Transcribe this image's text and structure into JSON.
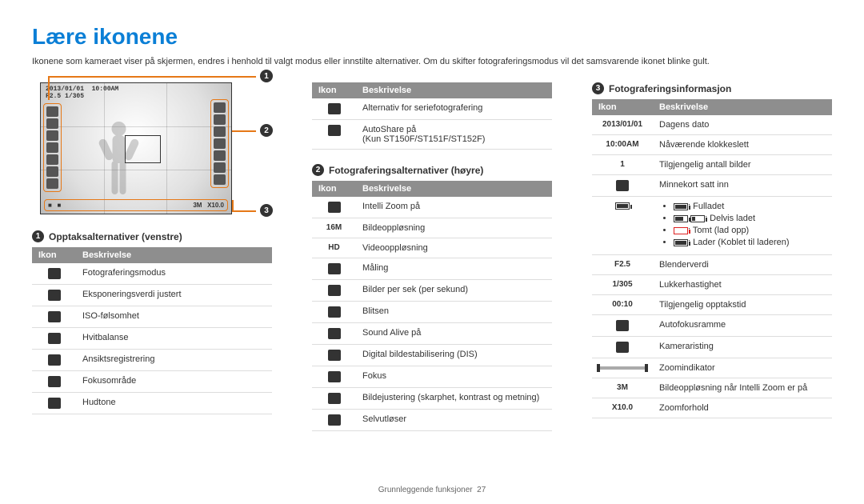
{
  "title": "Lære ikonene",
  "intro": "Ikonene som kameraet viser på skjermen, endres i henhold til valgt modus eller innstilte alternativer. Om du skifter fotograferingsmodus vil det samsvarende ikonet blinke gult.",
  "preview_date": "2013/01/01",
  "preview_time": "10:00AM",
  "preview_f": "F2.5",
  "preview_speed": "1/305",
  "tableHeaders": {
    "icon": "Ikon",
    "desc": "Beskrivelse"
  },
  "sections": {
    "s1": {
      "num": "1",
      "title": "Opptaksalternativer (venstre)",
      "rows": [
        {
          "desc": "Fotograferingsmodus"
        },
        {
          "desc": "Eksponeringsverdi justert"
        },
        {
          "desc": "ISO-følsomhet"
        },
        {
          "desc": "Hvitbalanse"
        },
        {
          "desc": "Ansiktsregistrering"
        },
        {
          "desc": "Fokusområde"
        },
        {
          "desc": "Hudtone"
        }
      ]
    },
    "s1b": {
      "rows": [
        {
          "desc": "Alternativ for seriefotografering"
        },
        {
          "desc": "AutoShare på\n(Kun ST150F/ST151F/ST152F)"
        }
      ]
    },
    "s2": {
      "num": "2",
      "title": "Fotograferingsalternativer (høyre)",
      "rows": [
        {
          "desc": "Intelli Zoom på"
        },
        {
          "icon": "16M",
          "desc": "Bildeoppløsning"
        },
        {
          "icon": "HD",
          "desc": "Videooppløsning"
        },
        {
          "desc": "Måling"
        },
        {
          "desc": "Bilder per sek (per sekund)"
        },
        {
          "desc": "Blitsen"
        },
        {
          "desc": "Sound Alive på"
        },
        {
          "desc": "Digital bildestabilisering (DIS)"
        },
        {
          "desc": "Fokus"
        },
        {
          "desc": "Bildejustering (skarphet, kontrast og metning)"
        },
        {
          "desc": "Selvutløser"
        }
      ]
    },
    "s3": {
      "num": "3",
      "title": "Fotograferingsinformasjon",
      "rows": [
        {
          "icon": "2013/01/01",
          "desc": "Dagens dato"
        },
        {
          "icon": "10:00AM",
          "desc": "Nåværende klokkeslett"
        },
        {
          "icon": "1",
          "desc": "Tilgjengelig antall bilder"
        },
        {
          "desc": "Minnekort satt inn"
        },
        {
          "battery": true,
          "items": [
            {
              "level": "full",
              "label": ": Fulladet"
            },
            {
              "level": "half",
              "mult": true,
              "label": ": Delvis ladet"
            },
            {
              "level": "red",
              "label": ": Tomt (lad opp)"
            },
            {
              "level": "chg",
              "label": ": Lader (Koblet til laderen)"
            }
          ]
        },
        {
          "icon": "F2.5",
          "desc": "Blenderverdi"
        },
        {
          "icon": "1/305",
          "desc": "Lukkerhastighet"
        },
        {
          "icon": "00:10",
          "desc": "Tilgjengelig opptakstid"
        },
        {
          "desc": "Autofokusramme"
        },
        {
          "desc": "Kameraristing"
        },
        {
          "zoom": true,
          "desc": "Zoomindikator"
        },
        {
          "icon": "3M",
          "desc": "Bildeoppløsning når Intelli Zoom er på"
        },
        {
          "icon": "X10.0",
          "desc": "Zoomforhold"
        }
      ]
    }
  },
  "footer": {
    "text": "Grunnleggende funksjoner",
    "page": "27"
  },
  "colors": {
    "accent": "#0b7fd6",
    "leader": "#e67817",
    "headerBg": "#8e8e8e"
  }
}
